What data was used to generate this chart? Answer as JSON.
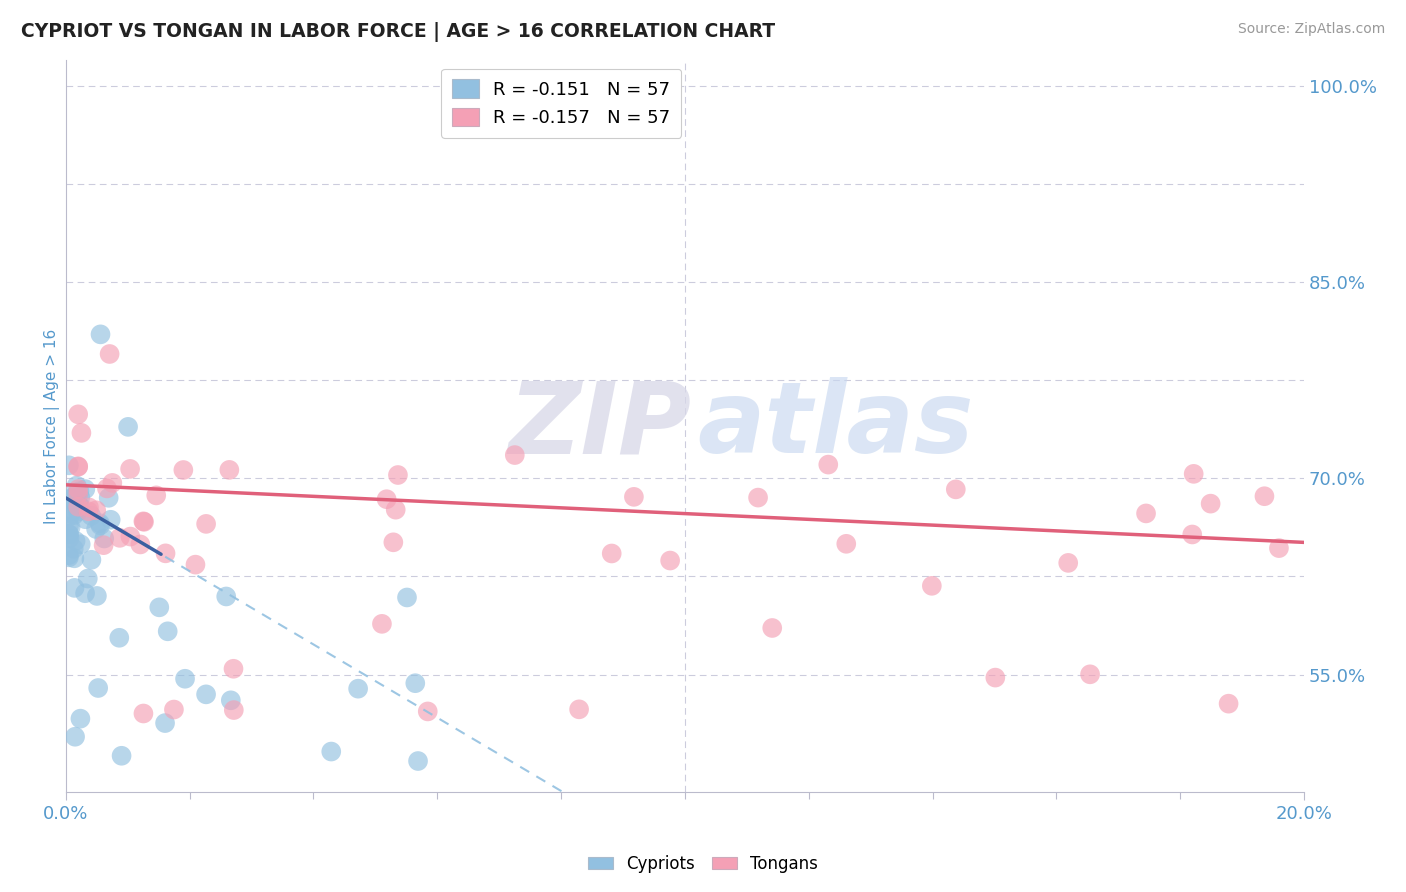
{
  "title": "CYPRIOT VS TONGAN IN LABOR FORCE | AGE > 16 CORRELATION CHART",
  "source_text": "Source: ZipAtlas.com",
  "ylabel": "In Labor Force | Age > 16",
  "xlim": [
    0.0,
    0.2
  ],
  "ylim": [
    0.46,
    1.02
  ],
  "ytick_values": [
    0.55,
    0.7,
    0.85,
    1.0
  ],
  "ytick_labels": [
    "55.0%",
    "70.0%",
    "85.0%",
    "100.0%"
  ],
  "watermark_zip": "ZIP",
  "watermark_atlas": "atlas",
  "legend_cypriot": "R = -0.151   N = 57",
  "legend_tongan": "R = -0.157   N = 57",
  "legend_label_cypriots": "Cypriots",
  "legend_label_tongans": "Tongans",
  "cypriot_color": "#92C0E0",
  "tongan_color": "#F4A0B5",
  "cypriot_line_solid_color": "#3A5FA0",
  "tongan_line_color": "#E0607A",
  "cypriot_line_dash_color": "#92C0E0",
  "background_color": "#ffffff",
  "grid_color": "#ccccdd",
  "title_color": "#222222",
  "tick_label_color": "#5599CC",
  "source_color": "#999999",
  "cypriot_seed": 77,
  "tongan_seed": 88,
  "solid_line_end_x": 0.016,
  "cypriot_intercept": 0.685,
  "cypriot_slope": -2.8,
  "tongan_intercept": 0.695,
  "tongan_slope": -0.22
}
